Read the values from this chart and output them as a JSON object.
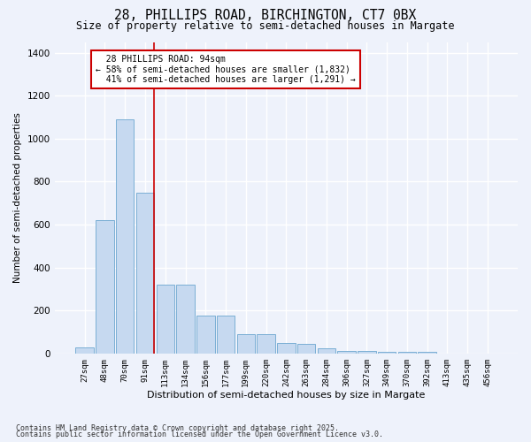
{
  "title_line1": "28, PHILLIPS ROAD, BIRCHINGTON, CT7 0BX",
  "title_line2": "Size of property relative to semi-detached houses in Margate",
  "xlabel": "Distribution of semi-detached houses by size in Margate",
  "ylabel": "Number of semi-detached properties",
  "categories": [
    "27sqm",
    "48sqm",
    "70sqm",
    "91sqm",
    "113sqm",
    "134sqm",
    "156sqm",
    "177sqm",
    "199sqm",
    "220sqm",
    "242sqm",
    "263sqm",
    "284sqm",
    "306sqm",
    "327sqm",
    "349sqm",
    "370sqm",
    "392sqm",
    "413sqm",
    "435sqm",
    "456sqm"
  ],
  "values": [
    28,
    620,
    1090,
    750,
    320,
    320,
    175,
    175,
    90,
    90,
    50,
    45,
    25,
    13,
    11,
    8,
    8,
    8,
    0,
    0,
    0
  ],
  "bar_color": "#c6d9f0",
  "bar_edge_color": "#7bafd4",
  "property_label": "28 PHILLIPS ROAD: 94sqm",
  "pct_smaller": 58,
  "count_smaller": 1832,
  "pct_larger": 41,
  "count_larger": 1291,
  "vline_color": "#cc0000",
  "annotation_box_color": "#cc0000",
  "background_color": "#eef2fb",
  "grid_color": "#ffffff",
  "ylim": [
    0,
    1450
  ],
  "yticks": [
    0,
    200,
    400,
    600,
    800,
    1000,
    1200,
    1400
  ],
  "footer_line1": "Contains HM Land Registry data © Crown copyright and database right 2025.",
  "footer_line2": "Contains public sector information licensed under the Open Government Licence v3.0."
}
